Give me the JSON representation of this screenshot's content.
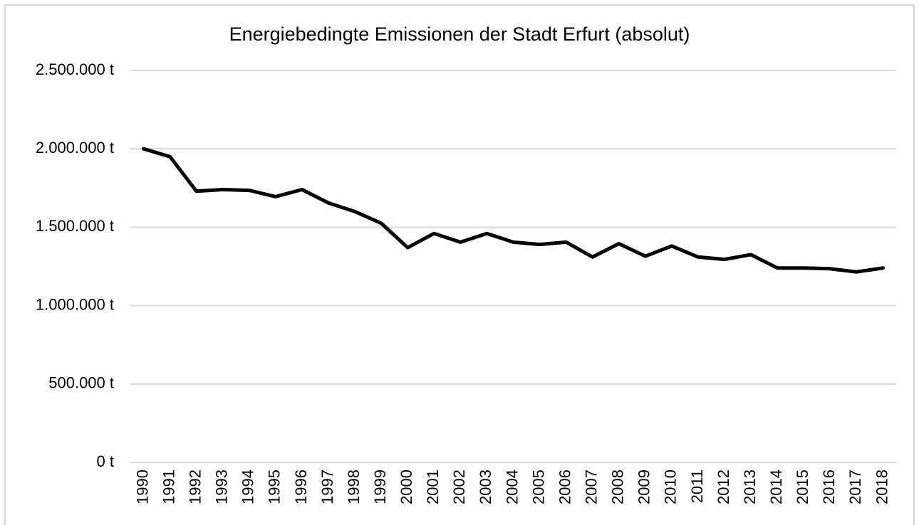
{
  "chart_data": {
    "type": "line",
    "title": "Energiebedingte Emissionen der Stadt Erfurt (absolut)",
    "categories": [
      "1990",
      "1991",
      "1992",
      "1993",
      "1994",
      "1995",
      "1996",
      "1997",
      "1998",
      "1999",
      "2000",
      "2001",
      "2002",
      "2003",
      "2004",
      "2005",
      "2006",
      "2007",
      "2008",
      "2009",
      "2010",
      "2011",
      "2012",
      "2013",
      "2014",
      "2015",
      "2016",
      "2017",
      "2018"
    ],
    "series": [
      {
        "name": null,
        "color": "#000000",
        "values": [
          2000000,
          1950000,
          1730000,
          1740000,
          1735000,
          1695000,
          1740000,
          1655000,
          1600000,
          1525000,
          1370000,
          1460000,
          1405000,
          1460000,
          1405000,
          1390000,
          1405000,
          1310000,
          1395000,
          1315000,
          1380000,
          1310000,
          1295000,
          1325000,
          1240000,
          1240000,
          1235000,
          1215000,
          1240000
        ]
      }
    ],
    "ylim": [
      0,
      2500000
    ],
    "yticks": [
      {
        "value": 0,
        "label": "0 t"
      },
      {
        "value": 500000,
        "label": "500.000 t"
      },
      {
        "value": 1000000,
        "label": "1.000.000 t"
      },
      {
        "value": 1500000,
        "label": "1.500.000 t"
      },
      {
        "value": 2000000,
        "label": "2.000.000 t"
      },
      {
        "value": 2500000,
        "label": "2.500.000 t"
      }
    ],
    "grid": true
  }
}
